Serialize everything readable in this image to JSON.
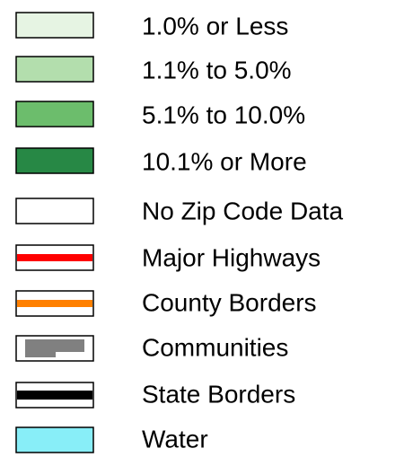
{
  "legend": {
    "items": [
      "1.0% or Less",
      "1.1% to 5.0%",
      "5.1% to 10.0%",
      "10.1% or More",
      "No Zip Code Data",
      "Major Highways",
      "County Borders",
      "Communities",
      "State Borders",
      "Water"
    ]
  }
}
